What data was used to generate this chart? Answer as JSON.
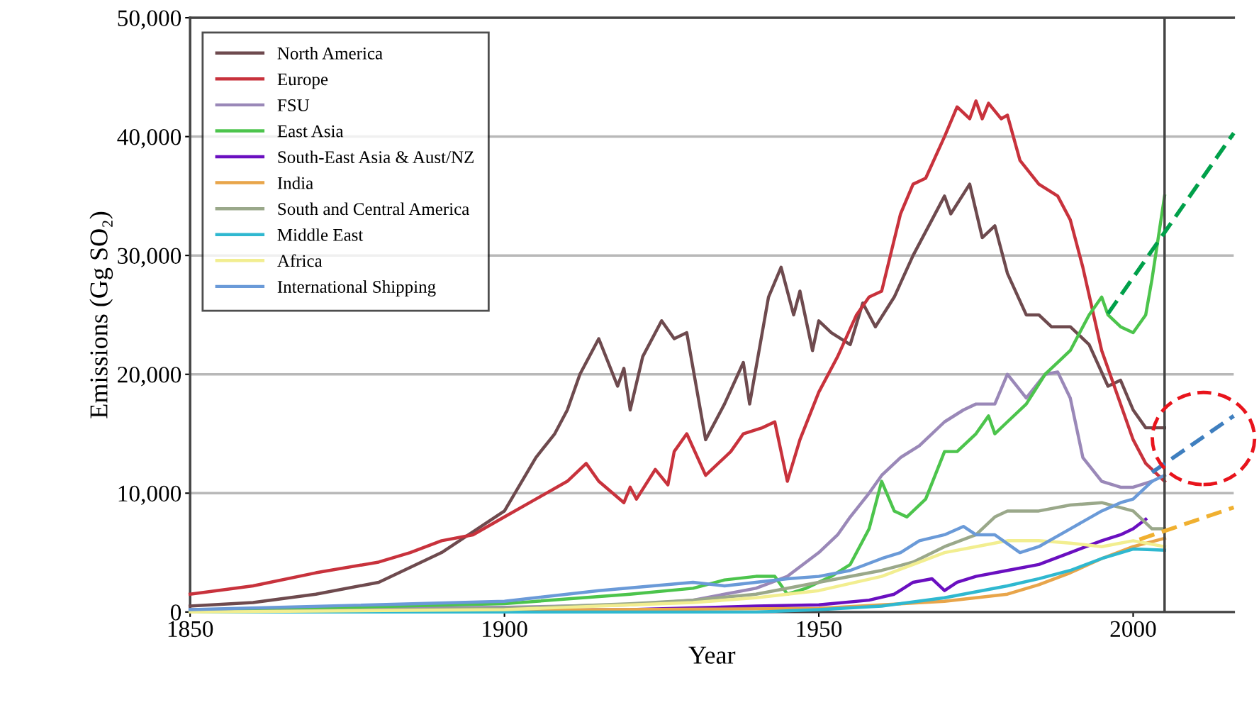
{
  "chart_data": {
    "type": "line",
    "xlabel": "Year",
    "ylabel": "Emissions (Gg SO₂)",
    "xlim": [
      1850,
      2016
    ],
    "ref_lines": [
      {
        "axis": "x",
        "value": 2005,
        "color": "#444444"
      }
    ],
    "xticks": [
      1850,
      1900,
      1950,
      2000
    ],
    "ylim": [
      0,
      50000
    ],
    "yticks": [
      {
        "value": 0,
        "label": "0"
      },
      {
        "value": 10000,
        "label": "10,000"
      },
      {
        "value": 20000,
        "label": "20,000"
      },
      {
        "value": 30000,
        "label": "30,000"
      },
      {
        "value": 40000,
        "label": "40,000"
      },
      {
        "value": 50000,
        "label": "50,000"
      }
    ],
    "grid": "y",
    "legend": "top left",
    "line_style": "solid",
    "marker": "none",
    "series": [
      {
        "name": "North America",
        "color": "#6e4a4e",
        "x": [
          1850,
          1860,
          1870,
          1880,
          1890,
          1900,
          1905,
          1908,
          1910,
          1912,
          1915,
          1918,
          1919,
          1920,
          1922,
          1925,
          1927,
          1929,
          1932,
          1935,
          1938,
          1939,
          1942,
          1944,
          1946,
          1947,
          1949,
          1950,
          1952,
          1955,
          1957,
          1959,
          1962,
          1965,
          1968,
          1970,
          1971,
          1974,
          1976,
          1978,
          1980,
          1983,
          1985,
          1987,
          1990,
          1993,
          1996,
          1998,
          2000,
          2002,
          2005
        ],
        "values": [
          500,
          800,
          1500,
          2500,
          5000,
          8500,
          13000,
          15000,
          17000,
          20000,
          23000,
          19000,
          20500,
          17000,
          21500,
          24500,
          23000,
          23500,
          14500,
          17500,
          21000,
          17500,
          26500,
          29000,
          25000,
          27000,
          22000,
          24500,
          23500,
          22500,
          26000,
          24000,
          26500,
          30000,
          33000,
          35000,
          33500,
          36000,
          31500,
          32500,
          28500,
          25000,
          25000,
          24000,
          24000,
          22500,
          19000,
          19500,
          17000,
          15500,
          15500
        ]
      },
      {
        "name": "Europe",
        "color": "#c8323c",
        "x": [
          1850,
          1860,
          1870,
          1880,
          1885,
          1890,
          1895,
          1900,
          1905,
          1910,
          1913,
          1915,
          1919,
          1920,
          1921,
          1924,
          1926,
          1927,
          1929,
          1932,
          1936,
          1938,
          1941,
          1943,
          1945,
          1947,
          1950,
          1953,
          1956,
          1958,
          1960,
          1963,
          1965,
          1967,
          1970,
          1972,
          1974,
          1975,
          1976,
          1977,
          1979,
          1980,
          1982,
          1985,
          1988,
          1990,
          1992,
          1995,
          1997,
          2000,
          2002,
          2005
        ],
        "values": [
          1500,
          2200,
          3300,
          4200,
          5000,
          6000,
          6500,
          8000,
          9500,
          11000,
          12500,
          11000,
          9200,
          10500,
          9500,
          12000,
          10700,
          13500,
          15000,
          11500,
          13500,
          15000,
          15500,
          16000,
          11000,
          14500,
          18500,
          21500,
          25000,
          26500,
          27000,
          33500,
          36000,
          36500,
          40000,
          42500,
          41500,
          43000,
          41500,
          42800,
          41500,
          41800,
          38000,
          36000,
          35000,
          33000,
          29000,
          22000,
          19000,
          14500,
          12500,
          11000
        ]
      },
      {
        "name": "FSU",
        "color": "#9a88b8",
        "x": [
          1850,
          1900,
          1920,
          1930,
          1935,
          1940,
          1945,
          1950,
          1953,
          1955,
          1958,
          1960,
          1963,
          1966,
          1970,
          1973,
          1975,
          1978,
          1980,
          1983,
          1986,
          1988,
          1990,
          1992,
          1995,
          1998,
          2000,
          2003
        ],
        "values": [
          200,
          400,
          600,
          1000,
          1500,
          2000,
          3000,
          5000,
          6500,
          8000,
          10000,
          11500,
          13000,
          14000,
          16000,
          17000,
          17500,
          17500,
          20000,
          18000,
          20000,
          20200,
          18000,
          13000,
          11000,
          10500,
          10500,
          11000
        ]
      },
      {
        "name": "East Asia",
        "color": "#4cc44c",
        "x": [
          1850,
          1900,
          1920,
          1930,
          1935,
          1940,
          1943,
          1945,
          1948,
          1952,
          1955,
          1958,
          1960,
          1962,
          1964,
          1967,
          1970,
          1972,
          1975,
          1977,
          1978,
          1980,
          1983,
          1986,
          1990,
          1993,
          1995,
          1996,
          1998,
          2000,
          2002,
          2003,
          2005
        ],
        "values": [
          100,
          700,
          1500,
          2000,
          2700,
          3000,
          3000,
          1500,
          2000,
          3000,
          4000,
          7000,
          11000,
          8500,
          8000,
          9500,
          13500,
          13500,
          15000,
          16500,
          15000,
          16000,
          17500,
          20000,
          22000,
          25000,
          26500,
          25000,
          24000,
          23500,
          25000,
          28000,
          35000
        ]
      },
      {
        "name": "South-East Asia & Aust/NZ",
        "color": "#6a0fc0",
        "x": [
          1850,
          1920,
          1940,
          1950,
          1958,
          1962,
          1965,
          1968,
          1970,
          1972,
          1975,
          1980,
          1985,
          1990,
          1995,
          1998,
          2000,
          2002
        ],
        "values": [
          0,
          200,
          500,
          600,
          1000,
          1500,
          2500,
          2800,
          1800,
          2500,
          3000,
          3500,
          4000,
          5000,
          6000,
          6500,
          7000,
          7800
        ]
      },
      {
        "name": "India",
        "color": "#e8a54a",
        "x": [
          1850,
          1950,
          1960,
          1970,
          1980,
          1985,
          1990,
          1995,
          2000,
          2005
        ],
        "values": [
          0,
          300,
          600,
          900,
          1500,
          2300,
          3300,
          4500,
          5500,
          6200
        ]
      },
      {
        "name": "South and Central America",
        "color": "#9aa88a",
        "x": [
          1850,
          1900,
          1920,
          1930,
          1940,
          1950,
          1960,
          1965,
          1970,
          1975,
          1978,
          1980,
          1985,
          1990,
          1995,
          2000,
          2003,
          2005
        ],
        "values": [
          0,
          300,
          700,
          1000,
          1500,
          2500,
          3500,
          4200,
          5500,
          6500,
          8000,
          8500,
          8500,
          9000,
          9200,
          8500,
          7000,
          7000
        ]
      },
      {
        "name": "Middle East",
        "color": "#2fb8d0",
        "x": [
          1850,
          1940,
          1950,
          1960,
          1970,
          1980,
          1985,
          1990,
          1995,
          2000,
          2005
        ],
        "values": [
          0,
          0,
          200,
          500,
          1200,
          2200,
          2800,
          3500,
          4500,
          5300,
          5200
        ]
      },
      {
        "name": "Africa",
        "color": "#f2ee90",
        "x": [
          1850,
          1900,
          1930,
          1940,
          1950,
          1960,
          1965,
          1970,
          1975,
          1980,
          1985,
          1990,
          1995,
          2000,
          2005
        ],
        "values": [
          0,
          200,
          800,
          1200,
          1800,
          3000,
          4000,
          5000,
          5500,
          6000,
          6000,
          5800,
          5500,
          6000,
          5500
        ]
      },
      {
        "name": "International Shipping",
        "color": "#6a9ad8",
        "x": [
          1850,
          1900,
          1915,
          1930,
          1935,
          1945,
          1950,
          1955,
          1960,
          1963,
          1966,
          1970,
          1973,
          1975,
          1978,
          1982,
          1985,
          1990,
          1995,
          1998,
          2000,
          2003,
          2005
        ],
        "values": [
          200,
          900,
          1800,
          2500,
          2200,
          2800,
          3000,
          3500,
          4500,
          5000,
          6000,
          6500,
          7200,
          6500,
          6500,
          5000,
          5500,
          7000,
          8500,
          9200,
          9500,
          11000,
          11500
        ]
      },
      {
        "color": "#00a04a",
        "line_style": "dashed",
        "x": [
          1996,
          2016
        ],
        "values": [
          25100,
          40300
        ]
      },
      {
        "color": "#3f7fbf",
        "line_style": "dashed",
        "x": [
          2003,
          2016
        ],
        "values": [
          11750,
          16500
        ]
      },
      {
        "color": "#f0b030",
        "line_style": "dashed",
        "x": [
          2001,
          2016
        ],
        "values": [
          6100,
          8800
        ]
      }
    ]
  }
}
